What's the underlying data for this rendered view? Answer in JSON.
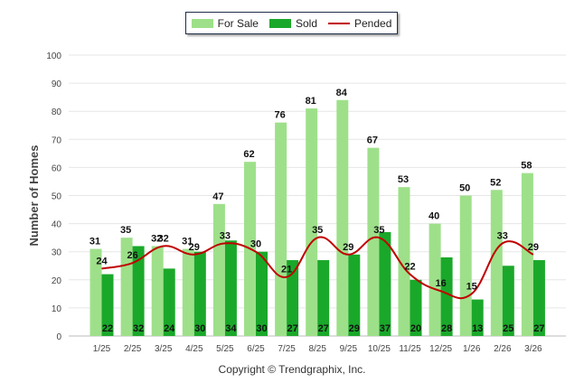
{
  "legend": {
    "for_sale": "For Sale",
    "sold": "Sold",
    "pended": "Pended"
  },
  "footer": "Copyright © Trendgraphix, Inc.",
  "colors": {
    "for_sale": "#9ee08a",
    "sold": "#1aa82a",
    "pended": "#c00000"
  },
  "chart_data": {
    "type": "bar",
    "ylabel": "Number of Homes",
    "xlabel": "",
    "ylim": [
      0,
      100
    ],
    "yticks": [
      0,
      10,
      20,
      30,
      40,
      50,
      60,
      70,
      80,
      90,
      100
    ],
    "categories": [
      "1/25",
      "2/25",
      "3/25",
      "4/25",
      "5/25",
      "6/25",
      "7/25",
      "8/25",
      "9/25",
      "10/25",
      "11/25",
      "12/25",
      "1/26",
      "2/26",
      "3/26"
    ],
    "series": [
      {
        "name": "For Sale",
        "type": "bar",
        "values": [
          31,
          35,
          32,
          31,
          47,
          62,
          76,
          81,
          84,
          67,
          53,
          40,
          50,
          52,
          58
        ]
      },
      {
        "name": "Sold",
        "type": "bar",
        "values": [
          22,
          32,
          24,
          30,
          34,
          30,
          27,
          27,
          29,
          37,
          20,
          28,
          13,
          25,
          27
        ]
      },
      {
        "name": "Pended",
        "type": "line",
        "values": [
          24,
          26,
          32,
          29,
          33,
          30,
          21,
          35,
          29,
          35,
          22,
          16,
          15,
          33,
          29
        ]
      }
    ],
    "grid": true,
    "legend_position": "top-center"
  }
}
